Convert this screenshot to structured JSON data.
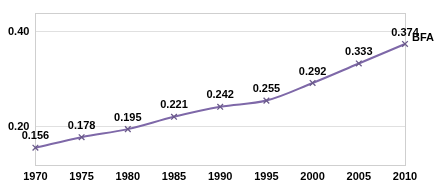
{
  "chart_data": {
    "type": "line",
    "categories": [
      "1970",
      "1975",
      "1980",
      "1985",
      "1990",
      "1995",
      "2000",
      "2005",
      "2010"
    ],
    "series": [
      {
        "name": "BFA",
        "color": "#7e68a8",
        "marker": "x",
        "values": [
          0.156,
          0.178,
          0.195,
          0.221,
          0.242,
          0.255,
          0.292,
          0.333,
          0.374
        ]
      }
    ],
    "ylim": [
      0.12,
      0.44
    ],
    "yticks": [
      {
        "value": 0.2,
        "label": "0.20"
      },
      {
        "value": 0.4,
        "label": "0.40"
      }
    ],
    "grid": true,
    "data_labels": true
  }
}
